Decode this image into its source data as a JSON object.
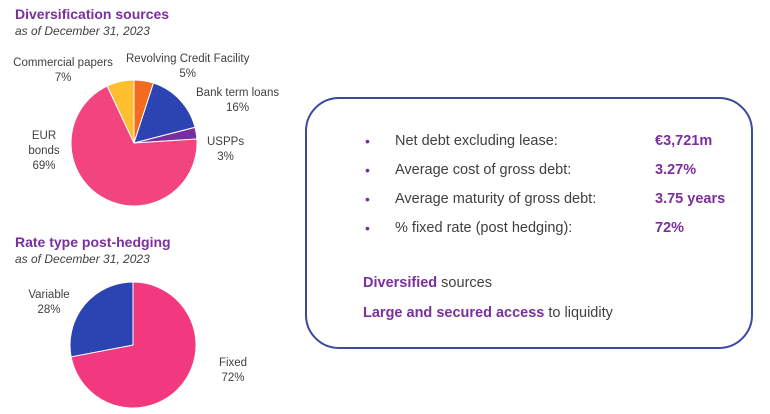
{
  "chart_data": [
    {
      "type": "pie",
      "title": "Diversification sources",
      "subtitle": "as of December 31, 2023",
      "unit": "%",
      "slices": [
        {
          "name": "Revolving Credit Facility",
          "value": 5,
          "value_label": "5%",
          "color": "#f26b1f"
        },
        {
          "name": "Bank term loans",
          "value": 16,
          "value_label": "16%",
          "color": "#2b44b1"
        },
        {
          "name": "USPPs",
          "value": 3,
          "value_label": "3%",
          "color": "#7a2d9e"
        },
        {
          "name": "EUR bonds",
          "value": 69,
          "value_label": "69%",
          "color": "#f2457f"
        },
        {
          "name": "Commercial papers",
          "value": 7,
          "value_label": "7%",
          "color": "#fdbf2d"
        }
      ]
    },
    {
      "type": "pie",
      "title": "Rate type post-hedging",
      "subtitle": "as of December 31, 2023",
      "unit": "%",
      "slices": [
        {
          "name": "Fixed",
          "value": 72,
          "value_label": "72%",
          "color": "#f2397f"
        },
        {
          "name": "Variable",
          "value": 28,
          "value_label": "28%",
          "color": "#2b44b1"
        }
      ]
    }
  ],
  "summary": {
    "bullet_char": "•",
    "metrics": [
      {
        "label": "Net debt excluding lease:",
        "value": "€3,721m"
      },
      {
        "label": "Average cost of gross debt:",
        "value": "3.27%"
      },
      {
        "label": "Average maturity of gross debt:",
        "value": "3.75 years"
      },
      {
        "label": "% fixed rate (post hedging):",
        "value": "72%"
      }
    ],
    "line1": {
      "highlight": "Diversified",
      "rest": " sources"
    },
    "line2": {
      "highlight": "Large and secured access",
      "rest": " to liquidity"
    }
  }
}
